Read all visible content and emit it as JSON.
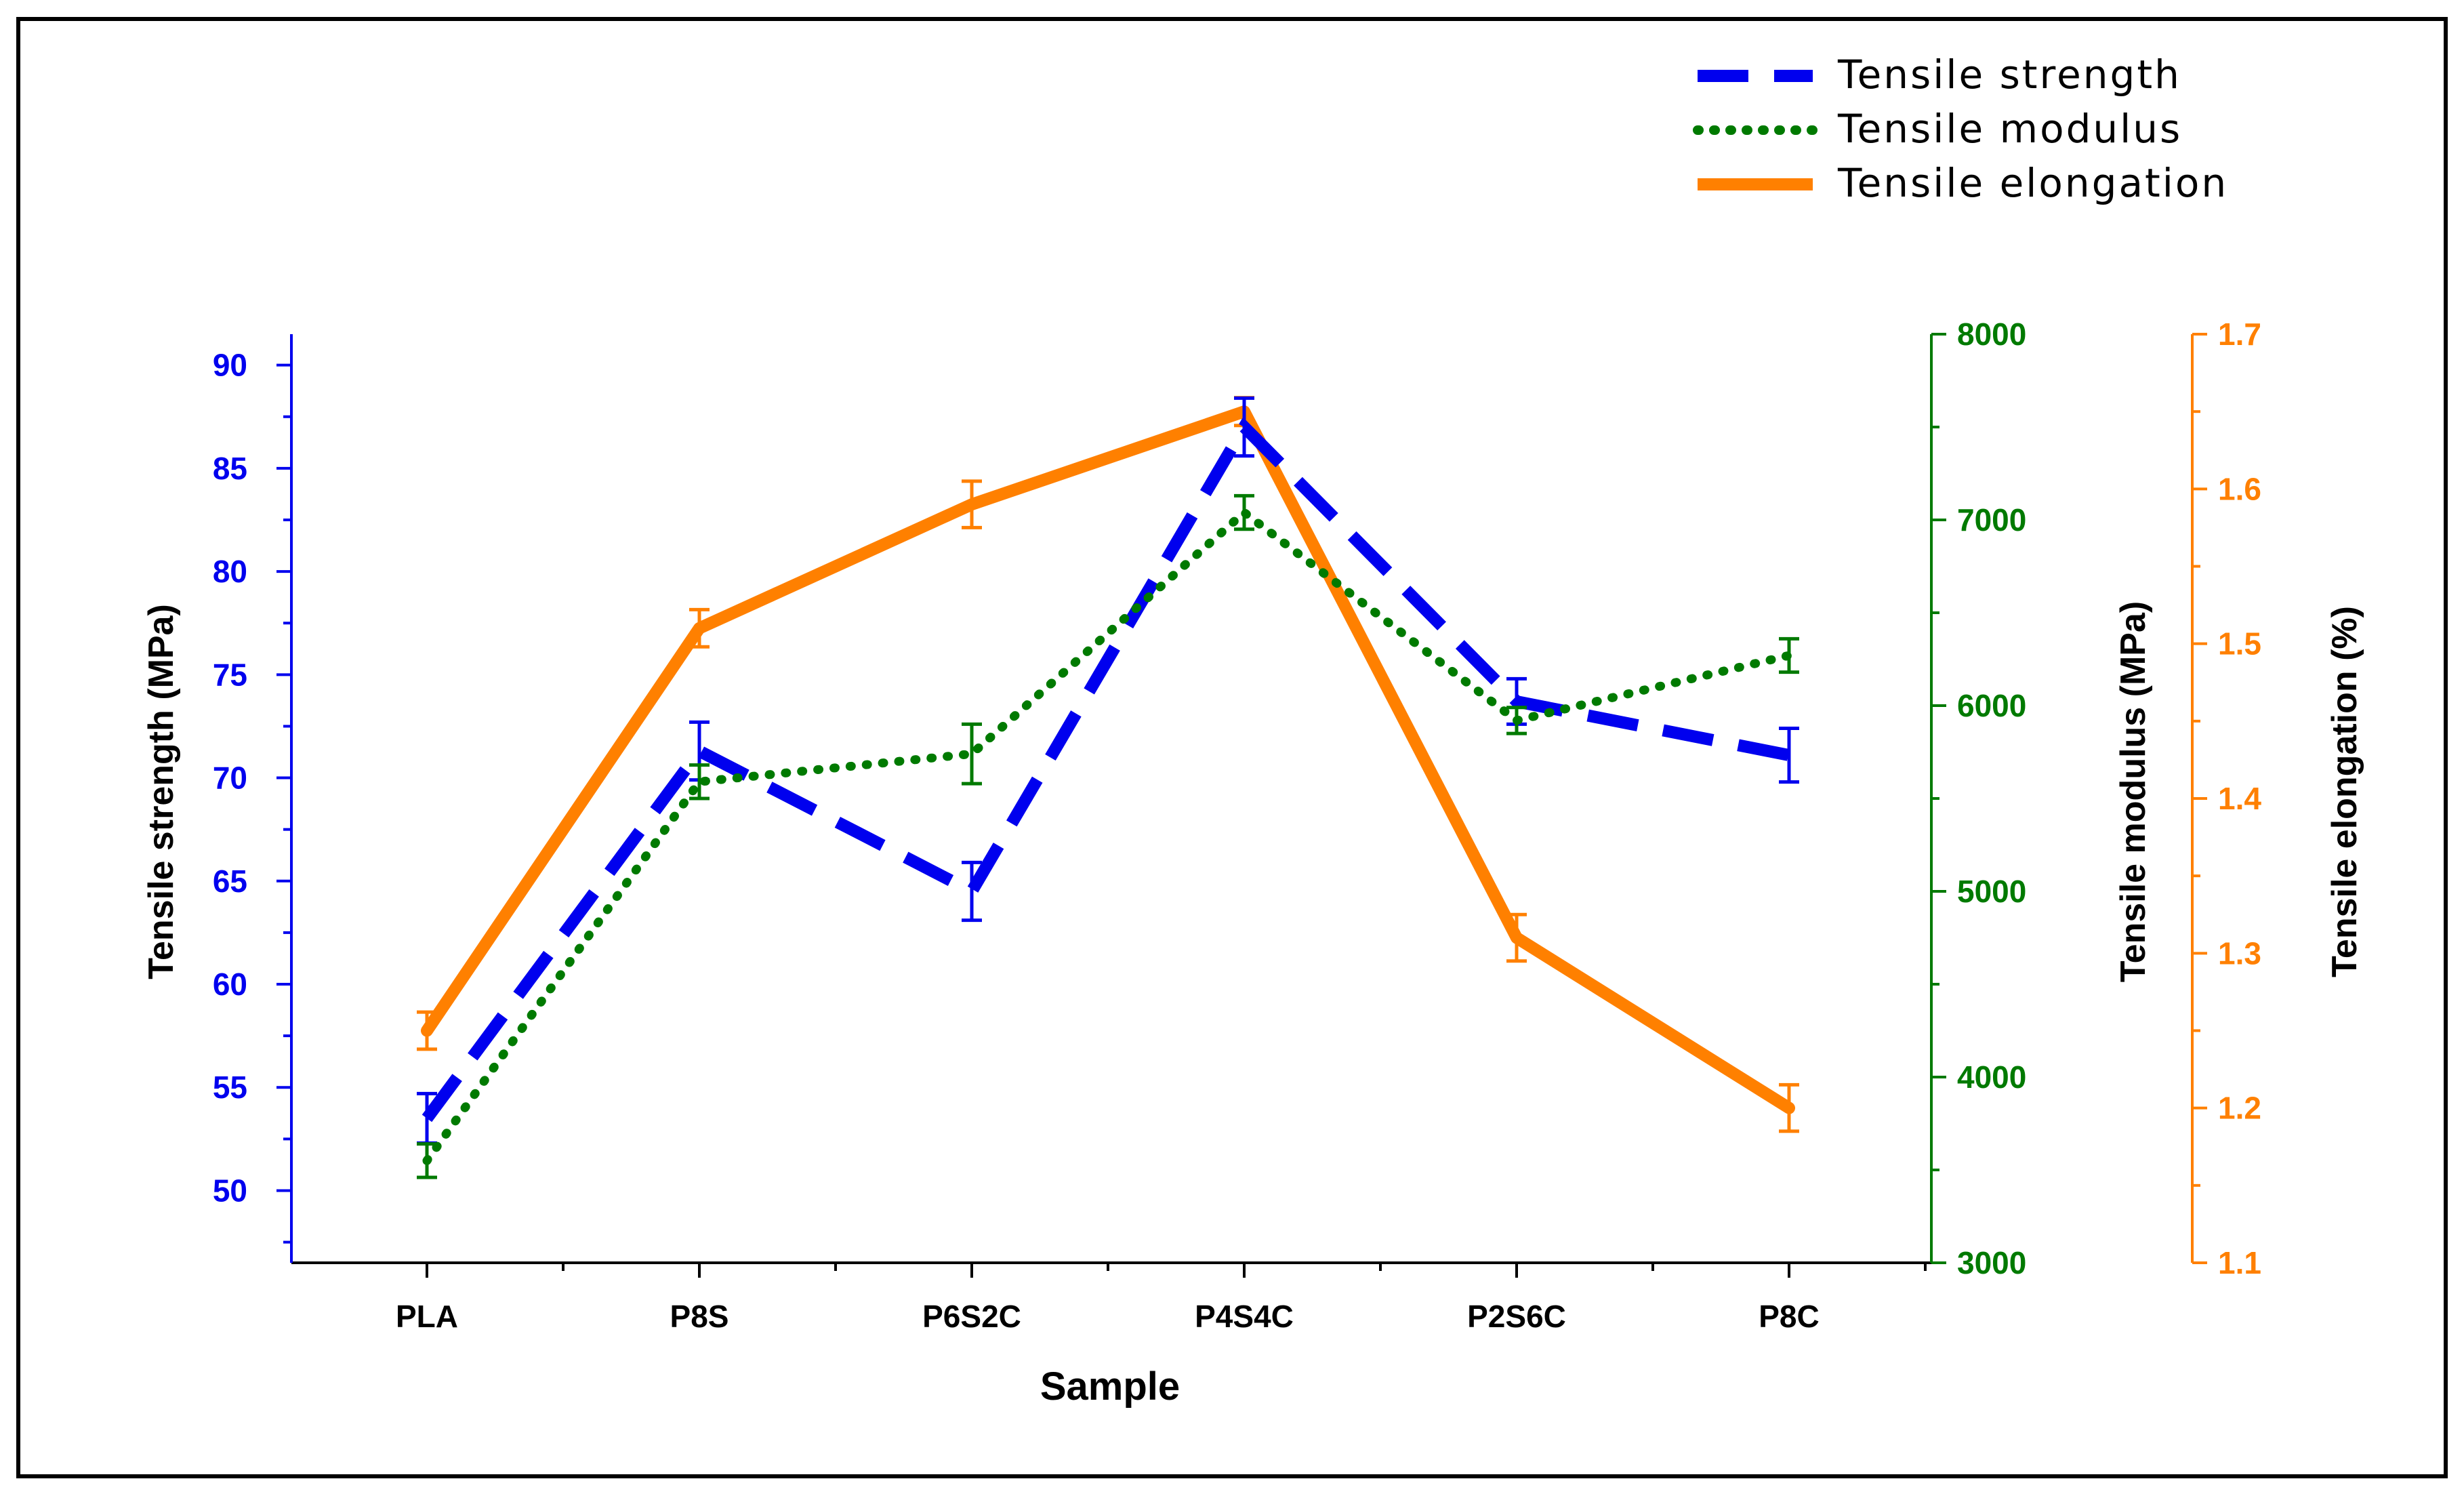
{
  "chart_data": {
    "type": "line",
    "title": "",
    "xlabel": "Sample",
    "categories": [
      "PLA",
      "P8S",
      "P6S2C",
      "P4S4C",
      "P2S6C",
      "P8C"
    ],
    "axes": {
      "left": {
        "label": "Tensile strength (MPa)",
        "ylim": [
          46.5,
          91.5
        ],
        "ticks": [
          50,
          55,
          60,
          65,
          70,
          75,
          80,
          85,
          90
        ]
      },
      "right1": {
        "label": "Tensile modulus (MPa)",
        "ylim": [
          3000,
          8000
        ],
        "ticks": [
          3000,
          4000,
          5000,
          6000,
          7000,
          8000
        ]
      },
      "right2": {
        "label": "Tensile elongation (%)",
        "ylim": [
          1.1,
          1.7
        ],
        "ticks": [
          "1.1",
          "1.2",
          "1.3",
          "1.4",
          "1.5",
          "1.6",
          "1.7"
        ]
      }
    },
    "series": [
      {
        "name": "Tensile strength",
        "axis": "left",
        "color": "#0000ee",
        "style": "dashed",
        "values": [
          53.5,
          71.3,
          64.5,
          87.0,
          73.7,
          71.1
        ],
        "errors": [
          1.2,
          1.4,
          1.4,
          1.4,
          1.1,
          1.3
        ]
      },
      {
        "name": "Tensile modulus",
        "axis": "right1",
        "color": "#007a00",
        "style": "dotted",
        "values": [
          3550,
          5590,
          5740,
          7040,
          5920,
          6270
        ],
        "errors": [
          90,
          90,
          160,
          90,
          70,
          90
        ]
      },
      {
        "name": "Tensile elongation",
        "axis": "right2",
        "color": "#ff8000",
        "style": "solid",
        "values": [
          1.25,
          1.51,
          1.59,
          1.65,
          1.31,
          1.2
        ],
        "errors": [
          0.012,
          0.012,
          0.015,
          0.009,
          0.015,
          0.015
        ]
      }
    ],
    "legend_position": "top-right"
  }
}
